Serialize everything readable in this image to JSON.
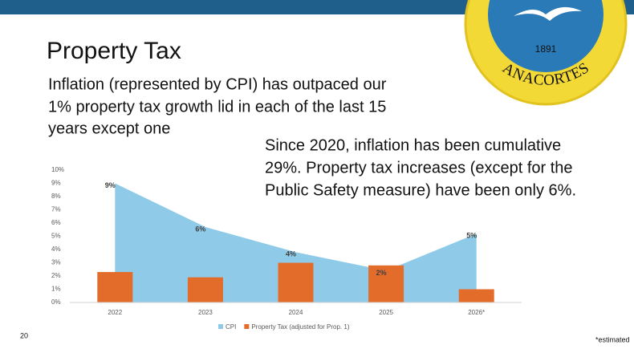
{
  "slide": {
    "title": "Property Tax",
    "intro": [
      "Inflation (represented by CPI) has outpaced our",
      "1% property tax growth lid in each of the last 15",
      "years except one"
    ],
    "callout": [
      "Since 2020, inflation has been cumulative",
      "29%. Property tax increases (except for the",
      "Public Safety measure) have been only 6%."
    ],
    "page_number": "20",
    "footnote": "*estimated",
    "logo": {
      "year": "1891",
      "name": "ANACORTES"
    }
  },
  "chart_data": {
    "type": "area-bar",
    "categories": [
      "2022",
      "2023",
      "2024",
      "2025",
      "2026*"
    ],
    "series": [
      {
        "name": "CPI",
        "color": "#8fcbe8",
        "kind": "area",
        "values": [
          9.0,
          5.7,
          3.8,
          2.4,
          5.2
        ],
        "value_labels": [
          "9%",
          "6%",
          "4%",
          "2%",
          "5%"
        ]
      },
      {
        "name": "Property Tax (adjusted for Prop. 1)",
        "color": "#e46c2a",
        "kind": "bar",
        "values": [
          2.3,
          1.9,
          3.0,
          2.8,
          1.0
        ]
      }
    ],
    "ylim": [
      0,
      10
    ],
    "yticks": [
      {
        "value": 0,
        "label": "0%"
      },
      {
        "value": 1,
        "label": "1%"
      },
      {
        "value": 2,
        "label": "2%"
      },
      {
        "value": 3,
        "label": "3%"
      },
      {
        "value": 4,
        "label": "4%"
      },
      {
        "value": 5,
        "label": "5%"
      },
      {
        "value": 6,
        "label": "6%"
      },
      {
        "value": 7,
        "label": "7%"
      },
      {
        "value": 8,
        "label": "8%"
      },
      {
        "value": 9,
        "label": "9%"
      },
      {
        "value": 10,
        "label": "10%"
      }
    ],
    "grid": false
  }
}
